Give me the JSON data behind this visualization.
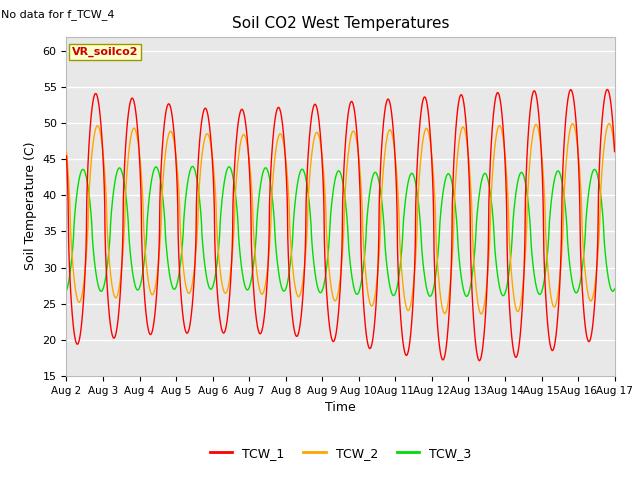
{
  "title": "Soil CO2 West Temperatures",
  "no_data_text": "No data for f_TCW_4",
  "annotation_box_text": "VR_soilco2",
  "xlabel": "Time",
  "ylabel": "Soil Temperature (C)",
  "ylim": [
    15,
    62
  ],
  "yticks": [
    15,
    20,
    25,
    30,
    35,
    40,
    45,
    50,
    55,
    60
  ],
  "x_tick_labels": [
    "Aug 2",
    "Aug 3",
    "Aug 4",
    "Aug 5",
    "Aug 6",
    "Aug 7",
    "Aug 8",
    "Aug 9",
    "Aug 10",
    "Aug 11",
    "Aug 12",
    "Aug 13",
    "Aug 14",
    "Aug 15",
    "Aug 16",
    "Aug 17"
  ],
  "line_colors": {
    "TCW_1": "#ff0000",
    "TCW_2": "#ffa500",
    "TCW_3": "#00dd00"
  },
  "fig_bg_color": "#ffffff",
  "plot_bg_color": "#e8e8e8",
  "grid_color": "#ffffff",
  "annotation_box_facecolor": "#ffffcc",
  "annotation_box_edgecolor": "#999900"
}
